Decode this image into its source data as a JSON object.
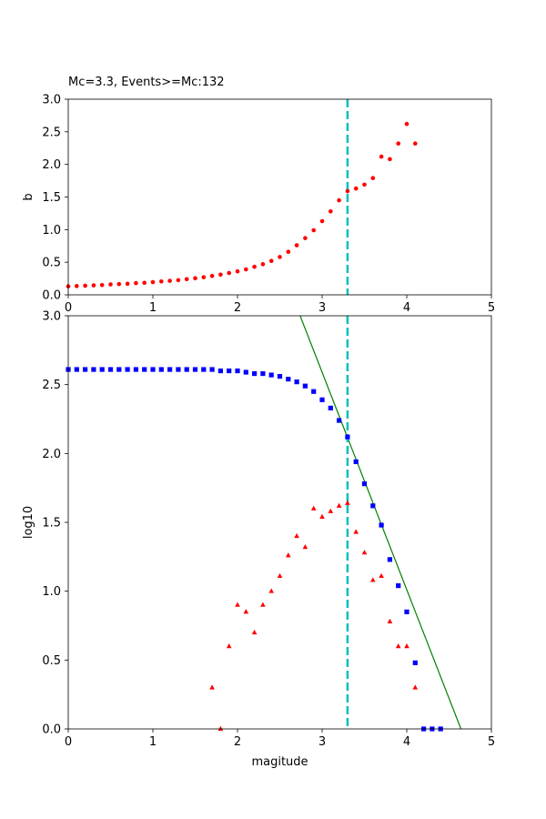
{
  "colors": {
    "b_points": "#ff0000",
    "cumulative_points": "#0000ff",
    "noncumulative_points": "#ff0000",
    "fit_line": "#008000",
    "mc_line": "#00bfbf",
    "axis": "#000000"
  },
  "chart_data": [
    {
      "type": "scatter",
      "title": "Mc=3.3, Events>=Mc:132",
      "xlabel": "",
      "ylabel": "b",
      "xlim": [
        0,
        5
      ],
      "ylim": [
        0,
        3
      ],
      "xticks": [
        "0",
        "1",
        "2",
        "3",
        "4",
        "5"
      ],
      "yticks": [
        "0.0",
        "0.5",
        "1.0",
        "1.5",
        "2.0",
        "2.5",
        "3.0"
      ],
      "grid": false,
      "mc_line": 3.3,
      "series": [
        {
          "marker": "circle",
          "color": "#ff0000",
          "x": [
            0,
            0.1,
            0.2,
            0.3,
            0.4,
            0.5,
            0.6,
            0.7,
            0.8,
            0.9,
            1.0,
            1.1,
            1.2,
            1.3,
            1.4,
            1.5,
            1.6,
            1.7,
            1.8,
            1.9,
            2.0,
            2.1,
            2.2,
            2.3,
            2.4,
            2.5,
            2.6,
            2.7,
            2.8,
            2.9,
            3.0,
            3.1,
            3.2,
            3.3,
            3.4,
            3.5,
            3.6,
            3.7,
            3.8,
            3.9,
            4.0,
            4.1
          ],
          "y": [
            0.13,
            0.135,
            0.14,
            0.145,
            0.15,
            0.16,
            0.165,
            0.17,
            0.18,
            0.185,
            0.195,
            0.205,
            0.215,
            0.225,
            0.24,
            0.255,
            0.27,
            0.29,
            0.31,
            0.335,
            0.36,
            0.39,
            0.43,
            0.47,
            0.52,
            0.58,
            0.66,
            0.76,
            0.87,
            0.99,
            1.13,
            1.28,
            1.45,
            1.59,
            1.63,
            1.69,
            1.79,
            2.12,
            2.08,
            2.32,
            2.62,
            2.32
          ]
        }
      ]
    },
    {
      "type": "scatter",
      "title": "",
      "xlabel": "magitude",
      "ylabel": "log10",
      "xlim": [
        0,
        5
      ],
      "ylim": [
        0,
        3
      ],
      "xticks": [
        "0",
        "1",
        "2",
        "3",
        "4",
        "5"
      ],
      "yticks": [
        "0.0",
        "0.5",
        "1.0",
        "1.5",
        "2.0",
        "2.5",
        "3.0"
      ],
      "grid": false,
      "mc_line": 3.3,
      "fit_line": {
        "x": [
          2.74,
          4.64
        ],
        "y": [
          3.0,
          0.0
        ]
      },
      "series": [
        {
          "marker": "square",
          "color": "#0000ff",
          "x": [
            0,
            0.1,
            0.2,
            0.3,
            0.4,
            0.5,
            0.6,
            0.7,
            0.8,
            0.9,
            1.0,
            1.1,
            1.2,
            1.3,
            1.4,
            1.5,
            1.6,
            1.7,
            1.8,
            1.9,
            2.0,
            2.1,
            2.2,
            2.3,
            2.4,
            2.5,
            2.6,
            2.7,
            2.8,
            2.9,
            3.0,
            3.1,
            3.2,
            3.3,
            3.4,
            3.5,
            3.6,
            3.7,
            3.8,
            3.9,
            4.0,
            4.1,
            4.2,
            4.3,
            4.4
          ],
          "y": [
            2.61,
            2.61,
            2.61,
            2.61,
            2.61,
            2.61,
            2.61,
            2.61,
            2.61,
            2.61,
            2.61,
            2.61,
            2.61,
            2.61,
            2.61,
            2.61,
            2.61,
            2.61,
            2.6,
            2.6,
            2.6,
            2.59,
            2.58,
            2.58,
            2.57,
            2.56,
            2.54,
            2.52,
            2.49,
            2.45,
            2.39,
            2.33,
            2.24,
            2.12,
            1.94,
            1.78,
            1.62,
            1.48,
            1.23,
            1.04,
            0.85,
            0.48,
            0.0,
            0.0,
            0.0
          ]
        },
        {
          "marker": "triangle",
          "color": "#ff0000",
          "x": [
            1.7,
            1.8,
            1.9,
            2.0,
            2.1,
            2.2,
            2.3,
            2.4,
            2.5,
            2.6,
            2.7,
            2.8,
            2.9,
            3.0,
            3.1,
            3.2,
            3.3,
            3.4,
            3.5,
            3.6,
            3.7,
            3.8,
            3.9,
            4.0,
            4.1
          ],
          "y": [
            0.3,
            0.0,
            0.6,
            0.9,
            0.85,
            0.7,
            0.9,
            1.0,
            1.11,
            1.26,
            1.4,
            1.32,
            1.6,
            1.54,
            1.58,
            1.62,
            1.64,
            1.43,
            1.28,
            1.08,
            1.11,
            0.78,
            0.6,
            0.6,
            0.3
          ]
        }
      ]
    }
  ]
}
